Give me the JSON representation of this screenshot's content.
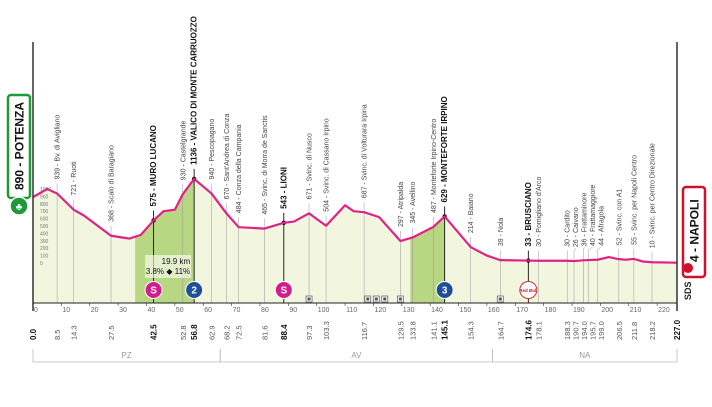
{
  "chart_data": {
    "type": "area",
    "xlabel": "",
    "ylabel": "",
    "xlim": [
      0,
      227
    ],
    "ylim": [
      0,
      1000
    ],
    "x_ticks": [
      0,
      10,
      20,
      30,
      40,
      50,
      60,
      70,
      80,
      90,
      100,
      110,
      120,
      130,
      140,
      150,
      160,
      170,
      180,
      190,
      200,
      210,
      220
    ],
    "y_ticks": [
      0,
      100,
      200,
      300,
      400,
      500,
      600,
      700,
      800,
      900,
      1000
    ],
    "grid": true,
    "profile_color": "#e0218a",
    "climb_fill_color": "#a9cf6a",
    "fill_color": "#f3f6de",
    "profile": [
      [
        0,
        890
      ],
      [
        5,
        1000
      ],
      [
        8.5,
        939
      ],
      [
        14.3,
        721
      ],
      [
        18,
        640
      ],
      [
        27.5,
        368
      ],
      [
        34,
        330
      ],
      [
        38,
        380
      ],
      [
        42.5,
        575
      ],
      [
        46,
        700
      ],
      [
        50,
        720
      ],
      [
        52.8,
        930
      ],
      [
        56.8,
        1136
      ],
      [
        62.9,
        940
      ],
      [
        68.2,
        670
      ],
      [
        72.5,
        484
      ],
      [
        81.6,
        465
      ],
      [
        88.4,
        543
      ],
      [
        92,
        560
      ],
      [
        97.3,
        671
      ],
      [
        103.3,
        504
      ],
      [
        110,
        780
      ],
      [
        113,
        700
      ],
      [
        116.7,
        687
      ],
      [
        122,
        620
      ],
      [
        129.5,
        297
      ],
      [
        133.8,
        345
      ],
      [
        141.1,
        487
      ],
      [
        145.1,
        629
      ],
      [
        154.3,
        214
      ],
      [
        160,
        100
      ],
      [
        164.7,
        39
      ],
      [
        174.6,
        33
      ],
      [
        178.1,
        30
      ],
      [
        188.3,
        30
      ],
      [
        190.7,
        26
      ],
      [
        194.0,
        36
      ],
      [
        195.7,
        40
      ],
      [
        199.0,
        44
      ],
      [
        203,
        80
      ],
      [
        206.5,
        52
      ],
      [
        209,
        45
      ],
      [
        211.8,
        55
      ],
      [
        215,
        20
      ],
      [
        218.2,
        10
      ],
      [
        227,
        4
      ]
    ],
    "climb_segments": [
      [
        36,
        56.8
      ],
      [
        133,
        145.1
      ]
    ],
    "waypoints": [
      {
        "km": "0.0",
        "elev": 890,
        "name": "POTENZA",
        "bold": true,
        "start": true
      },
      {
        "km": "8.5",
        "elev": 939,
        "name": "Bv. di Avigliano"
      },
      {
        "km": "14.3",
        "elev": 721,
        "name": "Ruoti"
      },
      {
        "km": "27.5",
        "elev": 368,
        "name": "Scalo di Baragiano"
      },
      {
        "km": "42.5",
        "elev": 575,
        "name": "MURO LUCANO",
        "bold": true
      },
      {
        "km": "52.8",
        "elev": 930,
        "name": "Castelgrande"
      },
      {
        "km": "56.8",
        "elev": 1136,
        "name": "VALICO DI MONTE CARRUOZZO",
        "bold": true
      },
      {
        "km": "62.9",
        "elev": 940,
        "name": "Pescopagano"
      },
      {
        "km": "68.2",
        "elev": 670,
        "name": "Sant'Andrea di Conza"
      },
      {
        "km": "72.5",
        "elev": 484,
        "name": "Conza della Campania"
      },
      {
        "km": "81.6",
        "elev": 465,
        "name": "Svinc. di Morra de Sanctis"
      },
      {
        "km": "88.4",
        "elev": 543,
        "name": "LIONI",
        "bold": true
      },
      {
        "km": "97.3",
        "elev": 671,
        "name": "Svinc. di Nusco"
      },
      {
        "km": "103.3",
        "elev": 504,
        "name": "Svinc. di Cassano Irpino"
      },
      {
        "km": "116.7",
        "elev": 687,
        "name": "Svinc. di Volturara Irpina"
      },
      {
        "km": "129.5",
        "elev": 297,
        "name": "Atripalda"
      },
      {
        "km": "133.8",
        "elev": 345,
        "name": "Avellino"
      },
      {
        "km": "141.1",
        "elev": 487,
        "name": "Monteforte Irpino-Centro"
      },
      {
        "km": "145.1",
        "elev": 629,
        "name": "MONTEFORTE IRPINO",
        "bold": true
      },
      {
        "km": "154.3",
        "elev": 214,
        "name": "Baiano"
      },
      {
        "km": "164.7",
        "elev": 39,
        "name": "Nola"
      },
      {
        "km": "174.6",
        "elev": 33,
        "name": "BRUSCIANO",
        "bold": true
      },
      {
        "km": "178.1",
        "elev": 30,
        "name": "Pomigliano d'Arco"
      },
      {
        "km": "188.3",
        "elev": 30,
        "name": "Cardito"
      },
      {
        "km": "190.7",
        "elev": 26,
        "name": "Caivano"
      },
      {
        "km": "194.0",
        "elev": 36,
        "name": "Frattaminore"
      },
      {
        "km": "195.7",
        "elev": 40,
        "name": "Frattamaggiore"
      },
      {
        "km": "199.0",
        "elev": 44,
        "name": "Afragola"
      },
      {
        "km": "206.5",
        "elev": 52,
        "name": "Svinc. con A1"
      },
      {
        "km": "211.8",
        "elev": 55,
        "name": "Svinc. per Napoli Centro"
      },
      {
        "km": "218.2",
        "elev": 10,
        "name": "Svinc. per Centro Direzionale"
      },
      {
        "km": "227.0",
        "elev": 4,
        "name": "NAPOLI",
        "bold": true,
        "finish": true
      }
    ],
    "markers": [
      {
        "km": 42.5,
        "type": "sprint",
        "label": "S",
        "color": "#d11e8c"
      },
      {
        "km": 56.8,
        "type": "climb",
        "label": "2",
        "color": "#1f4f9a"
      },
      {
        "km": 88.4,
        "type": "sprint",
        "label": "S",
        "color": "#d11e8c"
      },
      {
        "km": 145.1,
        "type": "climb",
        "label": "3",
        "color": "#1f4f9a"
      },
      {
        "km": 174.6,
        "type": "red-bull-km",
        "label": "Red Bull",
        "color": "#d0112b"
      }
    ],
    "small_icons_km": [
      97.3,
      118,
      121,
      124,
      129.5,
      164.7
    ],
    "climb_annotation": {
      "km": 56.8,
      "length": "19.9 km",
      "avg": "3.8%",
      "max": "11%"
    },
    "regions": [
      {
        "label": "PZ",
        "from": 0,
        "to": 66
      },
      {
        "label": "AV",
        "from": 66,
        "to": 162
      },
      {
        "label": "NA",
        "from": 162,
        "to": 227
      }
    ]
  },
  "start_badge": {
    "text": "890 - POTENZA",
    "color": "#1e9a3a"
  },
  "finish_badge": {
    "text": "4 - NAPOLI",
    "color": "#d0112b"
  },
  "sponsor_logo": "SDS"
}
